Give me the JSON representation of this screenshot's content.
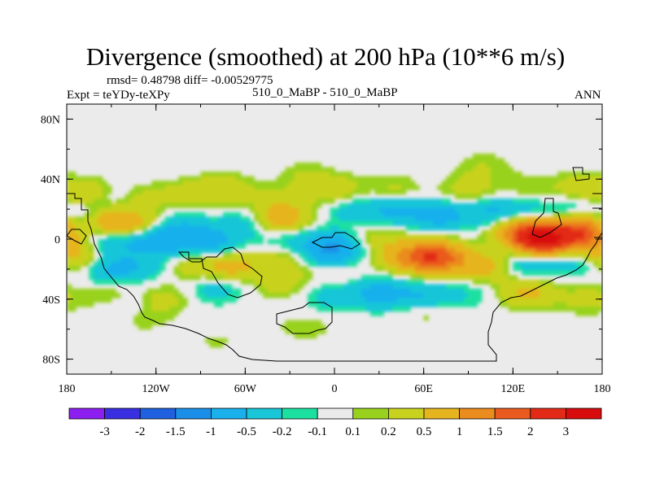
{
  "chart_data": {
    "type": "heatmap",
    "title": "Divergence (smoothed) at 200 hPa (10**6 m/s)",
    "stats_text": "rmsd= 0.48798 diff= -0.00529775",
    "left_label": "Expt = teYDy-teXPy",
    "center_label": "510_0_MaBP - 510_0_MaBP",
    "right_label": "ANN",
    "x_ticks": [
      "180",
      "120W",
      "60W",
      "0",
      "60E",
      "120E",
      "180"
    ],
    "y_ticks": [
      "80N",
      "40N",
      "0",
      "40S",
      "80S"
    ],
    "xlim": [
      -180,
      180
    ],
    "ylim": [
      -90,
      90
    ],
    "colorbar": {
      "labels": [
        "-3",
        "-2",
        "-1.5",
        "-1",
        "-0.5",
        "-0.2",
        "-0.1",
        "0.1",
        "0.2",
        "0.5",
        "1",
        "1.5",
        "2",
        "3"
      ],
      "colors": [
        "#8c1ef0",
        "#3a2fe0",
        "#1e60dd",
        "#1a8ee8",
        "#19b0ec",
        "#18c6d8",
        "#1ce0a0",
        "#ebebeb",
        "#98d21e",
        "#c8d21e",
        "#e6b41e",
        "#ea8c1e",
        "#ea5a1e",
        "#e22a16",
        "#d80c0c"
      ]
    },
    "anomalies": [
      {
        "lon": -165,
        "lat": 30,
        "value": 0.55
      },
      {
        "lon": -150,
        "lat": 28,
        "value": -0.3
      },
      {
        "lon": -130,
        "lat": 27,
        "value": 0.3
      },
      {
        "lon": -100,
        "lat": 30,
        "value": 0.25
      },
      {
        "lon": -75,
        "lat": 33,
        "value": 0.45
      },
      {
        "lon": -40,
        "lat": 26,
        "value": 0.25
      },
      {
        "lon": 0,
        "lat": 32,
        "value": 0.45
      },
      {
        "lon": 40,
        "lat": 32,
        "value": 0.3
      },
      {
        "lon": 90,
        "lat": 32,
        "value": 0.35
      },
      {
        "lon": 130,
        "lat": 34,
        "value": 0.2
      },
      {
        "lon": 165,
        "lat": 34,
        "value": 0.35
      },
      {
        "lon": -20,
        "lat": 42,
        "value": 0.2
      },
      {
        "lon": 100,
        "lat": 48,
        "value": 0.2
      },
      {
        "lon": -165,
        "lat": 18,
        "value": -0.3
      },
      {
        "lon": -150,
        "lat": 12,
        "value": 0.9
      },
      {
        "lon": -128,
        "lat": 8,
        "value": 0.55
      },
      {
        "lon": -105,
        "lat": 10,
        "value": -0.3
      },
      {
        "lon": -60,
        "lat": 10,
        "value": -0.35
      },
      {
        "lon": -35,
        "lat": 13,
        "value": 0.9
      },
      {
        "lon": 10,
        "lat": 20,
        "value": -0.35
      },
      {
        "lon": 40,
        "lat": 20,
        "value": -0.6
      },
      {
        "lon": 70,
        "lat": 16,
        "value": -0.7
      },
      {
        "lon": 105,
        "lat": 18,
        "value": -0.55
      },
      {
        "lon": 130,
        "lat": 18,
        "value": -0.35
      },
      {
        "lon": 160,
        "lat": 18,
        "value": -0.35
      },
      {
        "lon": -150,
        "lat": -2,
        "value": -0.5
      },
      {
        "lon": -120,
        "lat": 0,
        "value": -0.9
      },
      {
        "lon": -95,
        "lat": 0,
        "value": -0.6
      },
      {
        "lon": -78,
        "lat": -3,
        "value": -0.4
      },
      {
        "lon": -30,
        "lat": 3,
        "value": -0.35
      },
      {
        "lon": 0,
        "lat": -5,
        "value": -0.7
      },
      {
        "lon": -5,
        "lat": -10,
        "value": -0.55
      },
      {
        "lon": 30,
        "lat": 0,
        "value": 0.3
      },
      {
        "lon": 140,
        "lat": 0,
        "value": 3.2
      },
      {
        "lon": 165,
        "lat": 6,
        "value": 1.6
      },
      {
        "lon": 125,
        "lat": 6,
        "value": 1.0
      },
      {
        "lon": 172,
        "lat": -5,
        "value": 0.6
      },
      {
        "lon": -170,
        "lat": -12,
        "value": 0.5
      },
      {
        "lon": -150,
        "lat": -20,
        "value": -0.6
      },
      {
        "lon": -125,
        "lat": -18,
        "value": -0.3
      },
      {
        "lon": -100,
        "lat": -18,
        "value": 0.3
      },
      {
        "lon": -70,
        "lat": -18,
        "value": 0.7
      },
      {
        "lon": -35,
        "lat": -16,
        "value": 0.35
      },
      {
        "lon": 0,
        "lat": -20,
        "value": 0.2
      },
      {
        "lon": 50,
        "lat": -12,
        "value": 1.0
      },
      {
        "lon": 70,
        "lat": -12,
        "value": 1.7
      },
      {
        "lon": 100,
        "lat": -18,
        "value": 0.7
      },
      {
        "lon": 130,
        "lat": -15,
        "value": -0.5
      },
      {
        "lon": 160,
        "lat": -14,
        "value": -0.45
      },
      {
        "lon": -150,
        "lat": -38,
        "value": 0.3
      },
      {
        "lon": -140,
        "lat": -44,
        "value": -0.3
      },
      {
        "lon": -115,
        "lat": -40,
        "value": 0.3
      },
      {
        "lon": -80,
        "lat": -33,
        "value": -0.35
      },
      {
        "lon": -35,
        "lat": -30,
        "value": 0.3
      },
      {
        "lon": -5,
        "lat": -38,
        "value": -0.3
      },
      {
        "lon": 30,
        "lat": -36,
        "value": -0.7
      },
      {
        "lon": 60,
        "lat": -38,
        "value": -0.5
      },
      {
        "lon": 90,
        "lat": -36,
        "value": -0.2
      },
      {
        "lon": 130,
        "lat": -36,
        "value": 0.6
      },
      {
        "lon": 170,
        "lat": -40,
        "value": 0.3
      },
      {
        "lon": 60,
        "lat": -48,
        "value": 0.2
      },
      {
        "lon": -130,
        "lat": -52,
        "value": 0.2
      },
      {
        "lon": -80,
        "lat": -72,
        "value": 0.25
      },
      {
        "lon": -20,
        "lat": -60,
        "value": 0.2
      },
      {
        "lon": 120,
        "lat": -68,
        "value": 0.2
      },
      {
        "lon": 130,
        "lat": -70,
        "value": -0.3
      }
    ]
  }
}
